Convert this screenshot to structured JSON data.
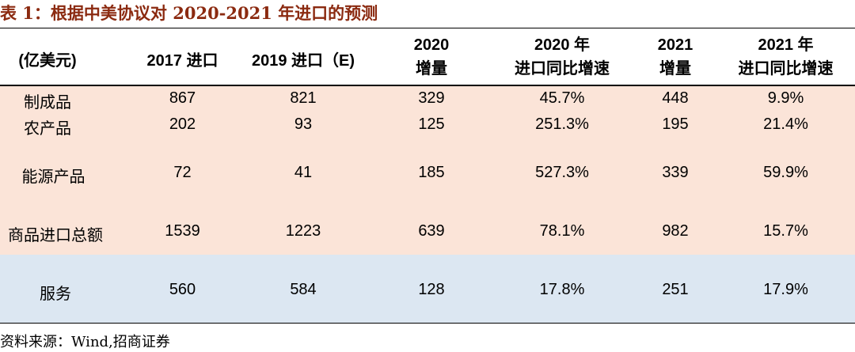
{
  "title": "表 1：根据中美协议对 2020-2021 年进口的预测",
  "header": {
    "col0": "(亿美元)",
    "col1": "2017 进口",
    "col2": "2019 进口（E)",
    "col3_line1": "2020",
    "col3_line2": "增量",
    "col4_line1": "2020 年",
    "col4_line2": "进口同比增速",
    "col5_line1": "2021",
    "col5_line2": "增量",
    "col6_line1": "2021 年",
    "col6_line2": "进口同比增速"
  },
  "rows": [
    {
      "category": "制成品",
      "v2017": "867",
      "v2019": "821",
      "inc2020": "329",
      "g2020": "45.7%",
      "inc2021": "448",
      "g2021": "9.9%"
    },
    {
      "category": "农产品",
      "v2017": "202",
      "v2019": "93",
      "inc2020": "125",
      "g2020": "251.3%",
      "inc2021": "195",
      "g2021": "21.4%"
    },
    {
      "category": "能源产品",
      "v2017": "72",
      "v2019": "41",
      "inc2020": "185",
      "g2020": "527.3%",
      "inc2021": "339",
      "g2021": "59.9%"
    },
    {
      "category": "商品进口总额",
      "v2017": "1539",
      "v2019": "1223",
      "inc2020": "639",
      "g2020": "78.1%",
      "inc2021": "982",
      "g2021": "15.7%"
    },
    {
      "category": "服务",
      "v2017": "560",
      "v2019": "584",
      "inc2020": "128",
      "g2020": "17.8%",
      "inc2021": "251",
      "g2021": "17.9%"
    }
  ],
  "source": "资料来源：Wind,招商证券",
  "colors": {
    "title": "#8B2A10",
    "goods_band": "#FBE4D8",
    "services_band": "#DCE7F2"
  }
}
